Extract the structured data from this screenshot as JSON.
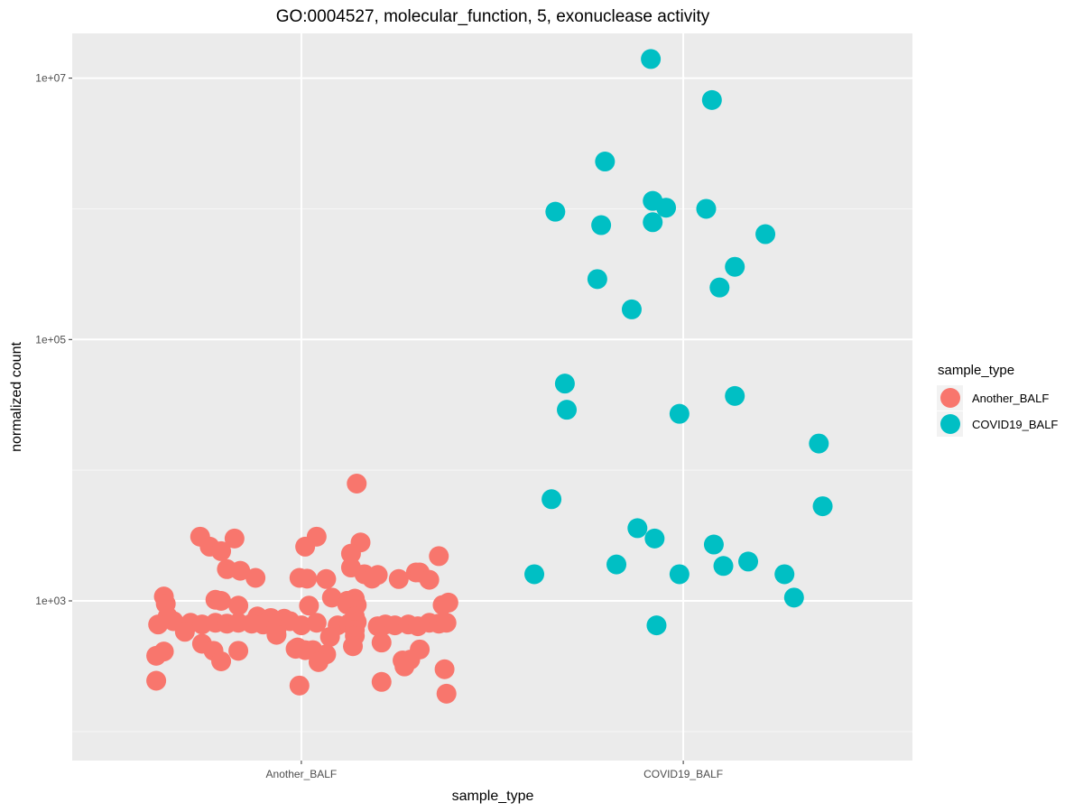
{
  "chart_data": {
    "type": "scatter",
    "title": "GO:0004527, molecular_function, 5, exonuclease activity",
    "xlabel": "sample_type",
    "ylabel": "normalized count",
    "y_scale": "log10",
    "ylim": [
      60,
      22000000
    ],
    "y_ticks": [
      {
        "value": 1000,
        "label": "1e+03"
      },
      {
        "value": 100000,
        "label": "1e+05"
      },
      {
        "value": 10000000,
        "label": "1e+07"
      }
    ],
    "categories": [
      "Another_BALF",
      "COVID19_BALF"
    ],
    "legend": {
      "title": "sample_type",
      "position": "right",
      "entries": [
        {
          "label": "Another_BALF",
          "color": "#F8766D"
        },
        {
          "label": "COVID19_BALF",
          "color": "#00BFC4"
        }
      ]
    },
    "series": [
      {
        "name": "Another_BALF",
        "color": "#F8766D",
        "points": [
          {
            "category": "Another_BALF",
            "jitter": 0.145,
            "y": 7900
          },
          {
            "category": "Another_BALF",
            "jitter": -0.265,
            "y": 3100
          },
          {
            "category": "Another_BALF",
            "jitter": -0.175,
            "y": 3000
          },
          {
            "category": "Another_BALF",
            "jitter": 0.04,
            "y": 3100
          },
          {
            "category": "Another_BALF",
            "jitter": 0.155,
            "y": 2800
          },
          {
            "category": "Another_BALF",
            "jitter": 0.01,
            "y": 2600
          },
          {
            "category": "Another_BALF",
            "jitter": -0.24,
            "y": 2600
          },
          {
            "category": "Another_BALF",
            "jitter": -0.21,
            "y": 2400
          },
          {
            "category": "Another_BALF",
            "jitter": 0.13,
            "y": 2300
          },
          {
            "category": "Another_BALF",
            "jitter": 0.36,
            "y": 2200
          },
          {
            "category": "Another_BALF",
            "jitter": 0.13,
            "y": 1800
          },
          {
            "category": "Another_BALF",
            "jitter": -0.195,
            "y": 1750
          },
          {
            "category": "Another_BALF",
            "jitter": -0.16,
            "y": 1700
          },
          {
            "category": "Another_BALF",
            "jitter": 0.165,
            "y": 1600
          },
          {
            "category": "Another_BALF",
            "jitter": 0.2,
            "y": 1580
          },
          {
            "category": "Another_BALF",
            "jitter": 0.3,
            "y": 1650
          },
          {
            "category": "Another_BALF",
            "jitter": 0.31,
            "y": 1650
          },
          {
            "category": "Another_BALF",
            "jitter": -0.12,
            "y": 1500
          },
          {
            "category": "Another_BALF",
            "jitter": -0.005,
            "y": 1500
          },
          {
            "category": "Another_BALF",
            "jitter": 0.015,
            "y": 1480
          },
          {
            "category": "Another_BALF",
            "jitter": 0.065,
            "y": 1470
          },
          {
            "category": "Another_BALF",
            "jitter": 0.185,
            "y": 1480
          },
          {
            "category": "Another_BALF",
            "jitter": 0.255,
            "y": 1470
          },
          {
            "category": "Another_BALF",
            "jitter": 0.335,
            "y": 1450
          },
          {
            "category": "Another_BALF",
            "jitter": -0.36,
            "y": 1080
          },
          {
            "category": "Another_BALF",
            "jitter": -0.225,
            "y": 1020
          },
          {
            "category": "Another_BALF",
            "jitter": -0.21,
            "y": 1000
          },
          {
            "category": "Another_BALF",
            "jitter": 0.08,
            "y": 1060
          },
          {
            "category": "Another_BALF",
            "jitter": 0.12,
            "y": 1000
          },
          {
            "category": "Another_BALF",
            "jitter": 0.14,
            "y": 1040
          },
          {
            "category": "Another_BALF",
            "jitter": -0.355,
            "y": 950
          },
          {
            "category": "Another_BALF",
            "jitter": -0.165,
            "y": 920
          },
          {
            "category": "Another_BALF",
            "jitter": 0.02,
            "y": 920
          },
          {
            "category": "Another_BALF",
            "jitter": 0.12,
            "y": 940
          },
          {
            "category": "Another_BALF",
            "jitter": 0.145,
            "y": 930
          },
          {
            "category": "Another_BALF",
            "jitter": 0.37,
            "y": 930
          },
          {
            "category": "Another_BALF",
            "jitter": 0.385,
            "y": 970
          },
          {
            "category": "Another_BALF",
            "jitter": -0.35,
            "y": 760
          },
          {
            "category": "Another_BALF",
            "jitter": -0.115,
            "y": 760
          },
          {
            "category": "Another_BALF",
            "jitter": -0.08,
            "y": 740
          },
          {
            "category": "Another_BALF",
            "jitter": -0.045,
            "y": 730
          },
          {
            "category": "Another_BALF",
            "jitter": 0.14,
            "y": 760
          },
          {
            "category": "Another_BALF",
            "jitter": -0.335,
            "y": 700
          },
          {
            "category": "Another_BALF",
            "jitter": -0.29,
            "y": 680
          },
          {
            "category": "Another_BALF",
            "jitter": -0.26,
            "y": 660
          },
          {
            "category": "Another_BALF",
            "jitter": -0.225,
            "y": 680
          },
          {
            "category": "Another_BALF",
            "jitter": -0.195,
            "y": 670
          },
          {
            "category": "Another_BALF",
            "jitter": -0.165,
            "y": 680
          },
          {
            "category": "Another_BALF",
            "jitter": -0.13,
            "y": 670
          },
          {
            "category": "Another_BALF",
            "jitter": -0.1,
            "y": 660
          },
          {
            "category": "Another_BALF",
            "jitter": -0.06,
            "y": 680
          },
          {
            "category": "Another_BALF",
            "jitter": -0.03,
            "y": 700
          },
          {
            "category": "Another_BALF",
            "jitter": 0.0,
            "y": 650
          },
          {
            "category": "Another_BALF",
            "jitter": 0.04,
            "y": 680
          },
          {
            "category": "Another_BALF",
            "jitter": 0.095,
            "y": 650
          },
          {
            "category": "Another_BALF",
            "jitter": 0.125,
            "y": 670
          },
          {
            "category": "Another_BALF",
            "jitter": 0.145,
            "y": 690
          },
          {
            "category": "Another_BALF",
            "jitter": 0.2,
            "y": 640
          },
          {
            "category": "Another_BALF",
            "jitter": 0.22,
            "y": 660
          },
          {
            "category": "Another_BALF",
            "jitter": 0.245,
            "y": 650
          },
          {
            "category": "Another_BALF",
            "jitter": 0.28,
            "y": 660
          },
          {
            "category": "Another_BALF",
            "jitter": 0.305,
            "y": 640
          },
          {
            "category": "Another_BALF",
            "jitter": 0.335,
            "y": 680
          },
          {
            "category": "Another_BALF",
            "jitter": 0.36,
            "y": 670
          },
          {
            "category": "Another_BALF",
            "jitter": 0.38,
            "y": 680
          },
          {
            "category": "Another_BALF",
            "jitter": -0.375,
            "y": 660
          },
          {
            "category": "Another_BALF",
            "jitter": -0.305,
            "y": 580
          },
          {
            "category": "Another_BALF",
            "jitter": -0.065,
            "y": 610
          },
          {
            "category": "Another_BALF",
            "jitter": 0.14,
            "y": 600
          },
          {
            "category": "Another_BALF",
            "jitter": -0.065,
            "y": 550
          },
          {
            "category": "Another_BALF",
            "jitter": 0.075,
            "y": 530
          },
          {
            "category": "Another_BALF",
            "jitter": 0.14,
            "y": 540
          },
          {
            "category": "Another_BALF",
            "jitter": -0.26,
            "y": 470
          },
          {
            "category": "Another_BALF",
            "jitter": 0.21,
            "y": 480
          },
          {
            "category": "Another_BALF",
            "jitter": -0.01,
            "y": 440
          },
          {
            "category": "Another_BALF",
            "jitter": 0.135,
            "y": 450
          },
          {
            "category": "Another_BALF",
            "jitter": -0.015,
            "y": 430
          },
          {
            "category": "Another_BALF",
            "jitter": 0.01,
            "y": 420
          },
          {
            "category": "Another_BALF",
            "jitter": 0.03,
            "y": 420
          },
          {
            "category": "Another_BALF",
            "jitter": -0.36,
            "y": 410
          },
          {
            "category": "Another_BALF",
            "jitter": -0.23,
            "y": 415
          },
          {
            "category": "Another_BALF",
            "jitter": -0.165,
            "y": 415
          },
          {
            "category": "Another_BALF",
            "jitter": 0.31,
            "y": 425
          },
          {
            "category": "Another_BALF",
            "jitter": 0.065,
            "y": 390
          },
          {
            "category": "Another_BALF",
            "jitter": -0.38,
            "y": 380
          },
          {
            "category": "Another_BALF",
            "jitter": -0.21,
            "y": 345
          },
          {
            "category": "Another_BALF",
            "jitter": 0.045,
            "y": 340
          },
          {
            "category": "Another_BALF",
            "jitter": 0.265,
            "y": 350
          },
          {
            "category": "Another_BALF",
            "jitter": 0.285,
            "y": 355
          },
          {
            "category": "Another_BALF",
            "jitter": 0.27,
            "y": 315
          },
          {
            "category": "Another_BALF",
            "jitter": 0.375,
            "y": 300
          },
          {
            "category": "Another_BALF",
            "jitter": -0.38,
            "y": 245
          },
          {
            "category": "Another_BALF",
            "jitter": 0.21,
            "y": 240
          },
          {
            "category": "Another_BALF",
            "jitter": -0.005,
            "y": 225
          },
          {
            "category": "Another_BALF",
            "jitter": 0.38,
            "y": 195
          }
        ]
      },
      {
        "name": "COVID19_BALF",
        "color": "#00BFC4",
        "points": [
          {
            "category": "COVID19_BALF",
            "jitter": -0.085,
            "y": 14000000
          },
          {
            "category": "COVID19_BALF",
            "jitter": 0.075,
            "y": 6800000
          },
          {
            "category": "COVID19_BALF",
            "jitter": -0.205,
            "y": 2300000
          },
          {
            "category": "COVID19_BALF",
            "jitter": -0.08,
            "y": 1150000
          },
          {
            "category": "COVID19_BALF",
            "jitter": -0.045,
            "y": 1020000
          },
          {
            "category": "COVID19_BALF",
            "jitter": 0.06,
            "y": 1000000
          },
          {
            "category": "COVID19_BALF",
            "jitter": -0.335,
            "y": 950000
          },
          {
            "category": "COVID19_BALF",
            "jitter": -0.08,
            "y": 790000
          },
          {
            "category": "COVID19_BALF",
            "jitter": -0.215,
            "y": 750000
          },
          {
            "category": "COVID19_BALF",
            "jitter": 0.215,
            "y": 640000
          },
          {
            "category": "COVID19_BALF",
            "jitter": 0.135,
            "y": 360000
          },
          {
            "category": "COVID19_BALF",
            "jitter": -0.225,
            "y": 290000
          },
          {
            "category": "COVID19_BALF",
            "jitter": 0.095,
            "y": 250000
          },
          {
            "category": "COVID19_BALF",
            "jitter": -0.135,
            "y": 170000
          },
          {
            "category": "COVID19_BALF",
            "jitter": -0.31,
            "y": 46000
          },
          {
            "category": "COVID19_BALF",
            "jitter": 0.135,
            "y": 37000
          },
          {
            "category": "COVID19_BALF",
            "jitter": -0.305,
            "y": 29000
          },
          {
            "category": "COVID19_BALF",
            "jitter": -0.01,
            "y": 27000
          },
          {
            "category": "COVID19_BALF",
            "jitter": 0.355,
            "y": 16000
          },
          {
            "category": "COVID19_BALF",
            "jitter": -0.345,
            "y": 6000
          },
          {
            "category": "COVID19_BALF",
            "jitter": 0.365,
            "y": 5300
          },
          {
            "category": "COVID19_BALF",
            "jitter": -0.12,
            "y": 3600
          },
          {
            "category": "COVID19_BALF",
            "jitter": -0.075,
            "y": 3000
          },
          {
            "category": "COVID19_BALF",
            "jitter": 0.08,
            "y": 2700
          },
          {
            "category": "COVID19_BALF",
            "jitter": 0.17,
            "y": 2000
          },
          {
            "category": "COVID19_BALF",
            "jitter": -0.175,
            "y": 1900
          },
          {
            "category": "COVID19_BALF",
            "jitter": 0.105,
            "y": 1850
          },
          {
            "category": "COVID19_BALF",
            "jitter": -0.39,
            "y": 1600
          },
          {
            "category": "COVID19_BALF",
            "jitter": -0.01,
            "y": 1600
          },
          {
            "category": "COVID19_BALF",
            "jitter": 0.265,
            "y": 1600
          },
          {
            "category": "COVID19_BALF",
            "jitter": 0.29,
            "y": 1060
          },
          {
            "category": "COVID19_BALF",
            "jitter": -0.07,
            "y": 650
          }
        ]
      }
    ]
  }
}
